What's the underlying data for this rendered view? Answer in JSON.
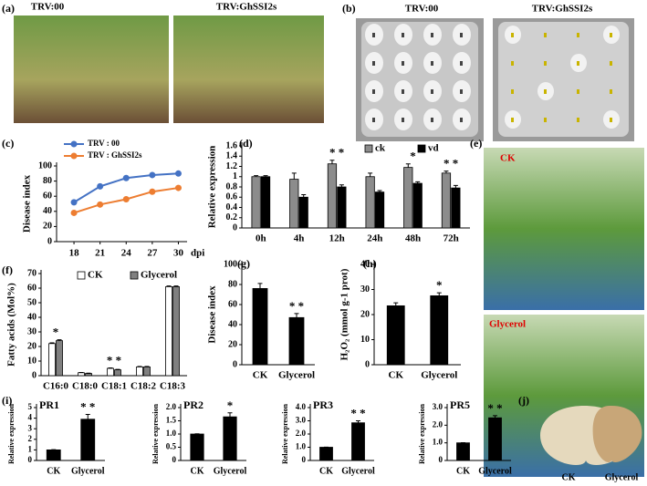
{
  "panel_labels": [
    "(a)",
    "(b)",
    "(c)",
    "(d)",
    "(e)",
    "(f)",
    "(g)",
    "(h)",
    "(i)",
    "(j)"
  ],
  "photo_labels": {
    "a": [
      "TRV:00",
      "TRV:GhSSI2s"
    ],
    "b": [
      "TRV:00",
      "TRV:GhSSI2s"
    ],
    "e": [
      "CK",
      "Glycerol"
    ],
    "j": [
      "CK",
      "Glycerol"
    ]
  },
  "chart_data": [
    {
      "type": "line",
      "ylabel": "Disease index",
      "xlabel": "dpi",
      "x": [
        18,
        21,
        24,
        27,
        30
      ],
      "xlim": [
        16,
        31
      ],
      "xticks": [
        18,
        21,
        24,
        27,
        30
      ],
      "ylim": [
        0,
        100
      ],
      "yticks": [
        0,
        20,
        40,
        60,
        80,
        100
      ],
      "legend": "top",
      "series": [
        {
          "name": "TRV : 00",
          "color": "#4472c4",
          "values": [
            52,
            73,
            84,
            88,
            90
          ],
          "errors": [
            1,
            2,
            2,
            4,
            2
          ]
        },
        {
          "name": "TRV : GhSSI2s",
          "color": "#ed7d31",
          "values": [
            38,
            49,
            56,
            66,
            71
          ],
          "errors": [
            2,
            2,
            2,
            4,
            3
          ]
        }
      ]
    },
    {
      "type": "bar",
      "ylabel": "Relative expression",
      "categories": [
        "0h",
        "4h",
        "12h",
        "24h",
        "48h",
        "72h"
      ],
      "ylim": [
        0,
        1.6
      ],
      "yticks": [
        0,
        0.2,
        0.4,
        0.6,
        0.8,
        1,
        1.2,
        1.4,
        1.6
      ],
      "legend": "top-right",
      "series": [
        {
          "name": "ck",
          "color": "#8c8c8c",
          "values": [
            1.0,
            0.95,
            1.25,
            1.0,
            1.18,
            1.07
          ],
          "errors": [
            0.02,
            0.12,
            0.07,
            0.07,
            0.07,
            0.04
          ]
        },
        {
          "name": "vd",
          "color": "#000000",
          "values": [
            1.0,
            0.6,
            0.8,
            0.7,
            0.87,
            0.78
          ],
          "errors": [
            0.02,
            0.05,
            0.04,
            0.03,
            0.03,
            0.05
          ]
        }
      ],
      "annotations": [
        {
          "text": "* *",
          "x": "12h"
        },
        {
          "text": "*",
          "x": "48h"
        },
        {
          "text": "* *",
          "x": "72h"
        }
      ]
    },
    {
      "type": "bar",
      "ylabel": "Fatty acids (Mol%)",
      "categories": [
        "C16:0",
        "C18:0",
        "C18:1",
        "C18:2",
        "C18:3"
      ],
      "ylim": [
        0,
        70
      ],
      "yticks": [
        0,
        10,
        20,
        30,
        40,
        50,
        60,
        70
      ],
      "legend": "top",
      "series": [
        {
          "name": "CK",
          "color": "#ffffff",
          "values": [
            22,
            2,
            5,
            6,
            61
          ],
          "errors": [
            0.5,
            0.2,
            0.3,
            0.3,
            0.5
          ]
        },
        {
          "name": "Glycerol",
          "color": "#808080",
          "values": [
            24,
            1.5,
            4,
            6,
            61
          ],
          "errors": [
            0.6,
            0.2,
            0.3,
            0.3,
            0.5
          ]
        }
      ],
      "annotations": [
        {
          "text": "*",
          "x": "C16:0"
        },
        {
          "text": "* *",
          "x": "C18:1"
        }
      ]
    },
    {
      "type": "bar",
      "ylabel": "Disease index",
      "categories": [
        "CK",
        "Glycerol"
      ],
      "ylim": [
        0,
        100
      ],
      "yticks": [
        0,
        20,
        40,
        60,
        80,
        100
      ],
      "series": [
        {
          "color": "#000000",
          "values": [
            76,
            47
          ],
          "errors": [
            5,
            4
          ]
        }
      ],
      "annotations": [
        {
          "text": "* *",
          "x": "Glycerol"
        }
      ]
    },
    {
      "type": "bar",
      "ylabel": "H₂O₂ (mmol g-1 prot)",
      "categories": [
        "CK",
        "Glycerol"
      ],
      "ylim": [
        0,
        40
      ],
      "yticks": [
        0,
        10,
        20,
        30,
        40
      ],
      "series": [
        {
          "color": "#000000",
          "values": [
            23.5,
            27.5
          ],
          "errors": [
            1.2,
            1.2
          ]
        }
      ],
      "annotations": [
        {
          "text": "*",
          "x": "Glycerol"
        }
      ]
    },
    {
      "type": "bar",
      "title": "PR1",
      "ylabel": "Relative expression",
      "categories": [
        "CK",
        "Glycerol"
      ],
      "ylim": [
        0,
        5
      ],
      "yticks": [
        0,
        1,
        2,
        3,
        4,
        5
      ],
      "series": [
        {
          "color": "#000000",
          "values": [
            1,
            3.9
          ],
          "errors": [
            0.02,
            0.45
          ]
        }
      ],
      "annotations": [
        {
          "text": "* *",
          "x": "Glycerol"
        }
      ]
    },
    {
      "type": "bar",
      "title": "PR2",
      "ylabel": "Relative expression",
      "categories": [
        "CK",
        "Glycerol"
      ],
      "ylim": [
        0,
        2
      ],
      "yticks": [
        0,
        0.5,
        {
          "value": 1,
          "label": "1.0"
        },
        1.5,
        {
          "value": 2,
          "label": "2.0"
        }
      ],
      "series": [
        {
          "color": "#000000",
          "values": [
            1,
            1.65
          ],
          "errors": [
            0.01,
            0.15
          ]
        }
      ],
      "annotations": [
        {
          "text": "*",
          "x": "Glycerol"
        }
      ]
    },
    {
      "type": "bar",
      "title": "PR3",
      "ylabel": "Relative expression",
      "categories": [
        "CK",
        "Glycerol"
      ],
      "ylim": [
        0,
        4
      ],
      "yticks": [
        0,
        {
          "value": 1,
          "label": "1.0"
        },
        {
          "value": 2,
          "label": "2.0"
        },
        {
          "value": 3,
          "label": "3.0"
        },
        {
          "value": 4,
          "label": "4.0"
        }
      ],
      "series": [
        {
          "color": "#000000",
          "values": [
            1,
            2.85
          ],
          "errors": [
            0.01,
            0.15
          ]
        }
      ],
      "annotations": [
        {
          "text": "* *",
          "x": "Glycerol"
        }
      ]
    },
    {
      "type": "bar",
      "title": "PR5",
      "ylabel": "Relative expression",
      "categories": [
        "CK",
        "Glycerol"
      ],
      "ylim": [
        0,
        3
      ],
      "yticks": [
        0,
        {
          "value": 1,
          "label": "1.0"
        },
        {
          "value": 2,
          "label": "2.0"
        },
        {
          "value": 3,
          "label": "3.0"
        }
      ],
      "series": [
        {
          "color": "#000000",
          "values": [
            1,
            2.42
          ],
          "errors": [
            0.01,
            0.12
          ]
        }
      ],
      "annotations": [
        {
          "text": "* *",
          "x": "Glycerol"
        }
      ]
    }
  ]
}
